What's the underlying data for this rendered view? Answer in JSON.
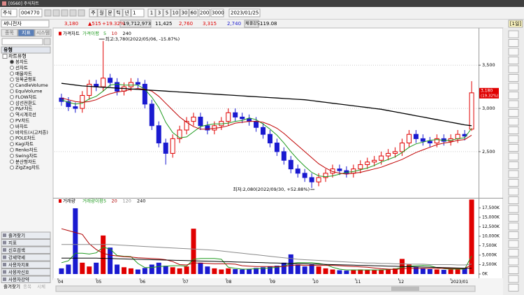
{
  "window": {
    "title": "[0560] 주식차트"
  },
  "toolbar": {
    "market": "주식",
    "code": "004770",
    "periods": [
      "주",
      "월",
      "분",
      "틱",
      "년"
    ],
    "unit": "1",
    "minutes": [
      "1",
      "3",
      "5",
      "10",
      "30",
      "60"
    ],
    "count": "200",
    "max": "3000",
    "date": "2023/01/25"
  },
  "quote": {
    "name": "써니전자",
    "price": "3,180",
    "change": "▲515",
    "rate": "+19.32%",
    "volume": "19,712,973",
    "amount": "11,425",
    "open": "2,760",
    "high": "3,315",
    "low": "2,740",
    "strength_label": "체결강도",
    "strength": "119.08",
    "period": "[1일]"
  },
  "left_panel": {
    "tabs": [
      "종목",
      "지표",
      "시스템"
    ],
    "header": "유형",
    "section": "차트유형",
    "items": [
      "봉차트",
      "선차트",
      "매물차트",
      "일목균형표",
      "CandleVolume",
      "EquiVolume",
      "FLOW차트",
      "삼선전환도",
      "P&F차트",
      "역시계곡선",
      "PV차트",
      "바차트",
      "바차트(시고저종)",
      "POLE차트",
      "Kagi차트",
      "Renko차트",
      "Swing차트",
      "분산형차트",
      "ZigZag차트"
    ],
    "groups": [
      "즐겨찾기",
      "지표",
      "신호검색",
      "강세약세",
      "사용자지표",
      "사용자신호",
      "사용자강약"
    ],
    "bottom_tabs": [
      "즐겨찾기",
      "종목",
      "시체"
    ]
  },
  "chart_data": [
    {
      "type": "candlestick",
      "title": "가격차트",
      "legend_title": "가격이평",
      "up_color": "#e00000",
      "down_color": "#1a1ad0",
      "grid": true,
      "xlim": [
        -1,
        60
      ],
      "xticks": [
        {
          "value": -0.5,
          "label": "04"
        },
        {
          "value": 5,
          "label": "05"
        },
        {
          "value": 11.3,
          "label": "06"
        },
        {
          "value": 17.5,
          "label": "07"
        },
        {
          "value": 23.7,
          "label": "08"
        },
        {
          "value": 30,
          "label": "09"
        },
        {
          "value": 36.2,
          "label": "10"
        },
        {
          "value": 42.3,
          "label": "11"
        },
        {
          "value": 48.5,
          "label": "12"
        },
        {
          "value": 56,
          "label": "2023/01"
        }
      ],
      "ylim": [
        1990,
        3890
      ],
      "yticks": [
        {
          "value": 2500,
          "label": "2,500"
        },
        {
          "value": 3000,
          "label": "3,000"
        },
        {
          "value": 3500,
          "label": "3,500"
        }
      ],
      "open": [
        3120,
        3080,
        3020,
        3000,
        3150,
        3280,
        3250,
        3350,
        3300,
        3200,
        3250,
        3300,
        3280,
        3050,
        2800,
        2600,
        2480,
        2650,
        2750,
        2850,
        2900,
        2800,
        2750,
        2800,
        2850,
        2950,
        2900,
        2880,
        2850,
        2780,
        2700,
        2600,
        2500,
        2400,
        2300,
        2250,
        2200,
        2150,
        2200,
        2250,
        2300,
        2280,
        2250,
        2300,
        2350,
        2380,
        2400,
        2450,
        2480,
        2500,
        2600,
        2700,
        2650,
        2620,
        2600,
        2650,
        2620,
        2650,
        2700,
        2760
      ],
      "high": [
        3170,
        3130,
        3070,
        3200,
        3330,
        3330,
        3780,
        3400,
        3350,
        3300,
        3350,
        3350,
        3330,
        3100,
        2850,
        2650,
        2700,
        2800,
        2900,
        2950,
        2950,
        2850,
        2850,
        2900,
        3000,
        3000,
        2950,
        2930,
        2900,
        2830,
        2750,
        2650,
        2550,
        2450,
        2350,
        2300,
        2250,
        2250,
        2300,
        2350,
        2350,
        2330,
        2350,
        2400,
        2430,
        2450,
        2500,
        2530,
        2550,
        2650,
        2750,
        2750,
        2700,
        2670,
        2700,
        2700,
        2700,
        2750,
        2750,
        3315
      ],
      "low": [
        3030,
        2970,
        2950,
        2950,
        3100,
        3200,
        3200,
        3250,
        3150,
        3150,
        3200,
        3230,
        3000,
        2750,
        2550,
        2350,
        2430,
        2600,
        2700,
        2800,
        2750,
        2700,
        2700,
        2750,
        2800,
        2850,
        2830,
        2800,
        2730,
        2650,
        2550,
        2450,
        2350,
        2250,
        2200,
        2150,
        2080,
        2100,
        2150,
        2200,
        2230,
        2200,
        2200,
        2250,
        2300,
        2330,
        2350,
        2400,
        2430,
        2450,
        2550,
        2600,
        2570,
        2550,
        2550,
        2570,
        2570,
        2600,
        2630,
        2740
      ],
      "close": [
        3080,
        3020,
        3000,
        3150,
        3280,
        3250,
        3350,
        3300,
        3200,
        3250,
        3300,
        3280,
        3050,
        2800,
        2600,
        2480,
        2650,
        2750,
        2850,
        2900,
        2800,
        2750,
        2800,
        2850,
        2950,
        2900,
        2880,
        2850,
        2780,
        2700,
        2600,
        2500,
        2400,
        2300,
        2250,
        2200,
        2150,
        2200,
        2250,
        2300,
        2280,
        2250,
        2300,
        2350,
        2380,
        2400,
        2450,
        2480,
        2500,
        2600,
        2700,
        2650,
        2620,
        2600,
        2650,
        2620,
        2650,
        2700,
        2680,
        3180
      ],
      "series": [
        {
          "name": "5",
          "color": "#1f9a1f",
          "values": [
            3100,
            3070,
            3050,
            3060,
            3110,
            3140,
            3200,
            3270,
            3280,
            3270,
            3270,
            3270,
            3220,
            3130,
            3010,
            2840,
            2720,
            2660,
            2670,
            2730,
            2790,
            2810,
            2820,
            2820,
            2830,
            2850,
            2860,
            2890,
            2870,
            2820,
            2760,
            2690,
            2600,
            2500,
            2410,
            2330,
            2260,
            2220,
            2210,
            2220,
            2240,
            2260,
            2270,
            2290,
            2310,
            2340,
            2380,
            2410,
            2440,
            2490,
            2550,
            2590,
            2610,
            2630,
            2640,
            2630,
            2630,
            2650,
            2660,
            2770
          ]
        },
        {
          "name": "10",
          "color": "#c00000",
          "values": [
            3120,
            3100,
            3080,
            3070,
            3080,
            3100,
            3140,
            3170,
            3190,
            3200,
            3220,
            3230,
            3220,
            3200,
            3140,
            3060,
            2980,
            2900,
            2840,
            2790,
            2760,
            2760,
            2770,
            2780,
            2800,
            2830,
            2840,
            2850,
            2850,
            2840,
            2810,
            2770,
            2710,
            2640,
            2570,
            2500,
            2430,
            2360,
            2310,
            2270,
            2250,
            2240,
            2250,
            2260,
            2280,
            2300,
            2320,
            2350,
            2380,
            2410,
            2450,
            2490,
            2520,
            2550,
            2580,
            2600,
            2610,
            2630,
            2640,
            2690
          ]
        },
        {
          "name": "240",
          "color": "#000000",
          "values": [
            3290,
            3280,
            3270,
            3260,
            3255,
            3250,
            3245,
            3240,
            3235,
            3230,
            3225,
            3220,
            3215,
            3210,
            3205,
            3200,
            3195,
            3190,
            3185,
            3180,
            3175,
            3170,
            3165,
            3160,
            3155,
            3150,
            3145,
            3140,
            3135,
            3130,
            3125,
            3120,
            3115,
            3110,
            3105,
            3100,
            3090,
            3080,
            3070,
            3060,
            3050,
            3040,
            3030,
            3020,
            3010,
            3000,
            2990,
            2975,
            2960,
            2945,
            2930,
            2915,
            2900,
            2885,
            2870,
            2855,
            2840,
            2825,
            2810,
            2800
          ]
        }
      ],
      "annotations": [
        "최고:3,780(2022/05/06, -15.87%)",
        "최저:2,080(2022/09/30, +52.88%)"
      ],
      "price_tag": {
        "value": 3180,
        "label": "3,180",
        "rate": "(19.32%)"
      }
    },
    {
      "type": "bar",
      "title": "거래량",
      "legend_title": "거래량이평",
      "up_color": "#e00000",
      "down_color": "#1a1ad0",
      "ylim": [
        0,
        19430
      ],
      "yticks": [
        {
          "value": 0,
          "label": "0K"
        },
        {
          "value": 2500,
          "label": "2,500K"
        },
        {
          "value": 5000,
          "label": "5,000K"
        },
        {
          "value": 7500,
          "label": "7,500K"
        },
        {
          "value": 10000,
          "label": "10,000K"
        },
        {
          "value": 12500,
          "label": "12,500K"
        },
        {
          "value": 15000,
          "label": "15,000K"
        },
        {
          "value": 17500,
          "label": "17,500K"
        }
      ],
      "values": [
        1500,
        2500,
        17400,
        3000,
        2000,
        3000,
        10200,
        7000,
        2500,
        1800,
        1500,
        1200,
        1600,
        2500,
        3000,
        2200,
        1800,
        1500,
        2000,
        12000,
        3000,
        2000,
        1500,
        1200,
        1500,
        1300,
        1200,
        1400,
        1600,
        1800,
        2000,
        2200,
        3000,
        5200,
        2500,
        2000,
        2500,
        2000,
        1500,
        1200,
        1000,
        900,
        1000,
        1200,
        1100,
        1000,
        1200,
        1300,
        1500,
        4000,
        2500,
        1800,
        1500,
        1300,
        1200,
        1100,
        1200,
        1300,
        1500,
        19713
      ],
      "series": [
        {
          "name": "5",
          "color": "#1f9a1f",
          "values": [
            3000,
            3500,
            5500,
            5500,
            5300,
            5600,
            7100,
            6600,
            4900,
            4700,
            4600,
            2800,
            1700,
            1700,
            2000,
            2100,
            2200,
            2200,
            2100,
            3900,
            4100,
            4100,
            4100,
            3900,
            1800,
            1500,
            1300,
            1300,
            1400,
            1500,
            1600,
            1800,
            2100,
            2800,
            3000,
            3000,
            3000,
            2800,
            2500,
            1800,
            1300,
            1100,
            1100,
            1100,
            1100,
            1100,
            1100,
            1200,
            1300,
            1800,
            2100,
            2200,
            2300,
            2200,
            1700,
            1400,
            1300,
            1300,
            1300,
            4800
          ]
        },
        {
          "name": "20",
          "color": "#b00000",
          "values": [
            12000,
            11500,
            11000,
            10500,
            8000,
            6500,
            5500,
            5000,
            4800,
            4600,
            4500,
            4300,
            4200,
            4100,
            4000,
            3800,
            3300,
            2500,
            2400,
            2900,
            2900,
            2800,
            2700,
            2700,
            2700,
            2600,
            2200,
            2100,
            2000,
            2000,
            2000,
            2000,
            2000,
            2300,
            2400,
            2300,
            2300,
            2300,
            2300,
            2300,
            2200,
            2100,
            2000,
            1900,
            1800,
            1600,
            1400,
            1300,
            1200,
            1400,
            1500,
            1500,
            1500,
            1500,
            1500,
            1500,
            1500,
            1500,
            1500,
            2400
          ]
        },
        {
          "name": "120",
          "color": "#8a8a8a",
          "values": [
            7800,
            7800,
            7800,
            7800,
            7800,
            7800,
            7800,
            7800,
            7700,
            7600,
            7500,
            7400,
            7300,
            7200,
            7100,
            7000,
            6900,
            6800,
            6700,
            6600,
            6500,
            6400,
            6300,
            6100,
            5900,
            5700,
            5500,
            5300,
            5100,
            4900,
            4700,
            4500,
            4300,
            4100,
            3900,
            3800,
            3700,
            3600,
            3500,
            3400,
            3300,
            3200,
            3100,
            3000,
            2900,
            2900,
            2800,
            2800,
            2700,
            2700,
            2600,
            2600,
            2600,
            2500,
            2500,
            2500,
            2500,
            2400,
            2400,
            2600
          ]
        },
        {
          "name": "240",
          "color": "#000000",
          "values": [
            4200,
            4200,
            4200,
            4200,
            4200,
            4200,
            4150,
            4100,
            4050,
            4000,
            3950,
            3900,
            3850,
            3800,
            3750,
            3700,
            3650,
            3600,
            3550,
            3500,
            3450,
            3400,
            3350,
            3300,
            3250,
            3200,
            3150,
            3100,
            3050,
            3000,
            2950,
            2900,
            2850,
            2800,
            2750,
            2700,
            2650,
            2600,
            2550,
            2500,
            2450,
            2400,
            2350,
            2300,
            2250,
            2200,
            2150,
            2100,
            2050,
            2000,
            1950,
            1900,
            1850,
            1800,
            1750,
            1700,
            1650,
            1600,
            1550,
            1550
          ]
        }
      ]
    }
  ]
}
